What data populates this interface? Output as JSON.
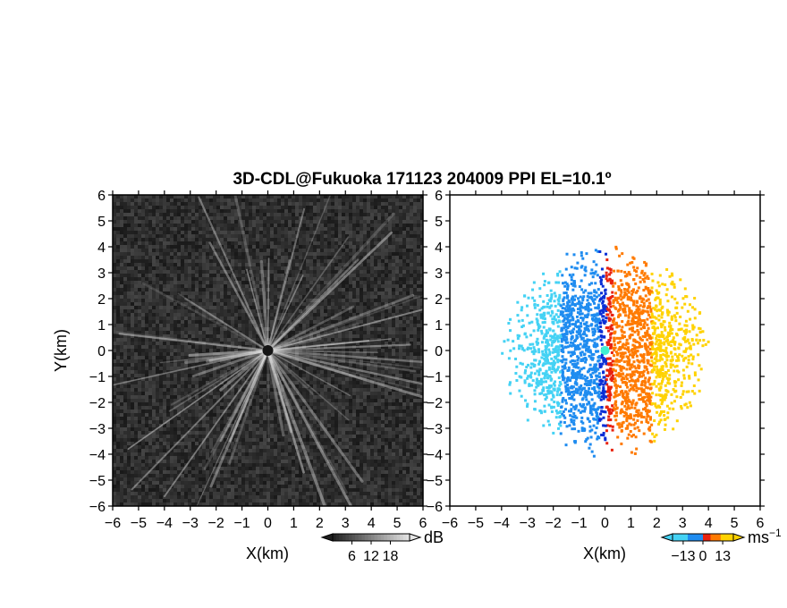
{
  "figure": {
    "title": "3D-CDL@Fukuoka 171123 204009 PPI EL=10.1º"
  },
  "chart_data": [
    {
      "type": "heatmap",
      "panel": "left",
      "description_variable": "dB",
      "xlabel": "X(km)",
      "ylabel": "Y(km)",
      "xlim": [
        -6,
        6
      ],
      "ylim": [
        -6,
        6
      ],
      "xticks": [
        "−6",
        "−5",
        "−4",
        "−3",
        "−2",
        "−1",
        "0",
        "1",
        "2",
        "3",
        "4",
        "5",
        "6"
      ],
      "yticks": [
        "6",
        "5",
        "4",
        "3",
        "2",
        "1",
        "0",
        "−1",
        "−2",
        "−3",
        "−4",
        "−5",
        "−6"
      ],
      "colorbar": {
        "unit": "dB",
        "ticks": [
          "6",
          "12",
          "18"
        ],
        "tick_values": [
          6,
          12,
          18
        ],
        "range": [
          0,
          24
        ],
        "colormap": "grayscale"
      },
      "center": [
        0,
        0
      ]
    },
    {
      "type": "heatmap",
      "panel": "right",
      "description_variable": "radial velocity",
      "xlabel": "X(km)",
      "xlim": [
        -6,
        6
      ],
      "ylim": [
        -6,
        6
      ],
      "xticks": [
        "−6",
        "−5",
        "−4",
        "−3",
        "−2",
        "−1",
        "0",
        "1",
        "2",
        "3",
        "4",
        "5",
        "6"
      ],
      "yticks": [
        "6",
        "5",
        "4",
        "3",
        "2",
        "1",
        "0",
        "−1",
        "−2",
        "−3",
        "−4",
        "−5",
        "−6"
      ],
      "colorbar": {
        "unit": "ms",
        "unit_exponent": "−1",
        "ticks": [
          "−13",
          "0",
          "13"
        ],
        "tick_values": [
          -13,
          0,
          13
        ],
        "range": [
          -20,
          20
        ],
        "colormap": "blue-cyan / red-yellow"
      },
      "data_extent_km": 4.2,
      "center": [
        0,
        0
      ],
      "colors": {
        "neg_far": "#0a2fd6",
        "neg_mid": "#1f8cf0",
        "neg_near": "#44d2f4",
        "pos_near": "#e8220e",
        "pos_mid": "#ff7a00",
        "pos_far": "#ffd200",
        "center_dot": "#3ff0d2"
      }
    }
  ]
}
